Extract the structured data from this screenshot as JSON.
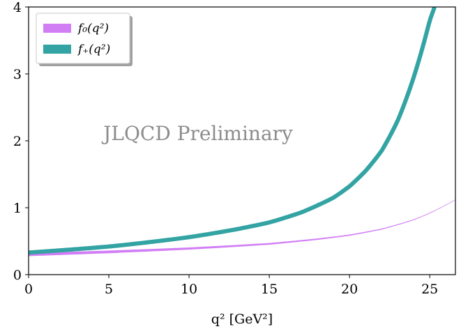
{
  "chart_data": {
    "type": "line",
    "title": "",
    "xlabel": "q² [GeV²]",
    "ylabel": "",
    "xlim": [
      0,
      26.6
    ],
    "ylim": [
      0,
      4
    ],
    "xticks": [
      0,
      5,
      10,
      15,
      20,
      25
    ],
    "yticks": [
      0,
      1,
      2,
      3,
      4
    ],
    "grid": false,
    "legend_position": "top-left",
    "annotation": "JLQCD Preliminary",
    "series": [
      {
        "name": "f₀(q²)",
        "color": "#d17ef5",
        "x": [
          0,
          5,
          10,
          15,
          18,
          20,
          22,
          24,
          25,
          26.6
        ],
        "y": [
          0.3,
          0.34,
          0.39,
          0.46,
          0.53,
          0.59,
          0.68,
          0.82,
          0.92,
          1.12
        ]
      },
      {
        "name": "f₊(q²)",
        "color": "#33a3a3",
        "x": [
          0,
          5,
          10,
          13,
          15,
          17,
          19,
          20,
          21,
          22,
          23,
          24,
          24.5,
          25,
          25.3
        ],
        "y": [
          0.33,
          0.42,
          0.56,
          0.68,
          0.78,
          0.93,
          1.15,
          1.32,
          1.55,
          1.85,
          2.3,
          2.95,
          3.35,
          3.8,
          4.0
        ]
      }
    ]
  }
}
